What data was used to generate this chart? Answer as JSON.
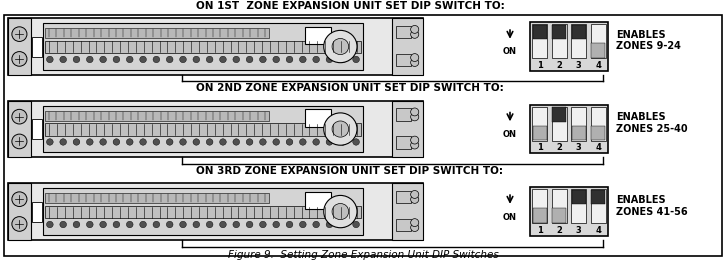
{
  "title": "Figure 9.  Setting Zone Expansion Unit DIP Switches",
  "bg_color": "#ffffff",
  "border_color": "#000000",
  "sections": [
    {
      "label": "ON 1ST  ZONE EXPANSION UNIT SET DIP SWITCH TO:",
      "enables": "ENABLES\nZONES 9-24",
      "dip_state": [
        true,
        true,
        true,
        false
      ]
    },
    {
      "label": "ON 2ND ZONE EXPANSION UNIT SET DIP SWITCH TO:",
      "enables": "ENABLES\nZONES 25-40",
      "dip_state": [
        false,
        true,
        false,
        false
      ]
    },
    {
      "label": "ON 3RD ZONE EXPANSION UNIT SET DIP SWITCH TO:",
      "enables": "ENABLES\nZONES 41-56",
      "dip_state": [
        false,
        false,
        true,
        true
      ]
    }
  ],
  "text_color": "#000000",
  "gray_light": "#d8d8d8",
  "gray_mid": "#b0b0b0",
  "gray_dark": "#404040",
  "black": "#000000",
  "white": "#ffffff"
}
